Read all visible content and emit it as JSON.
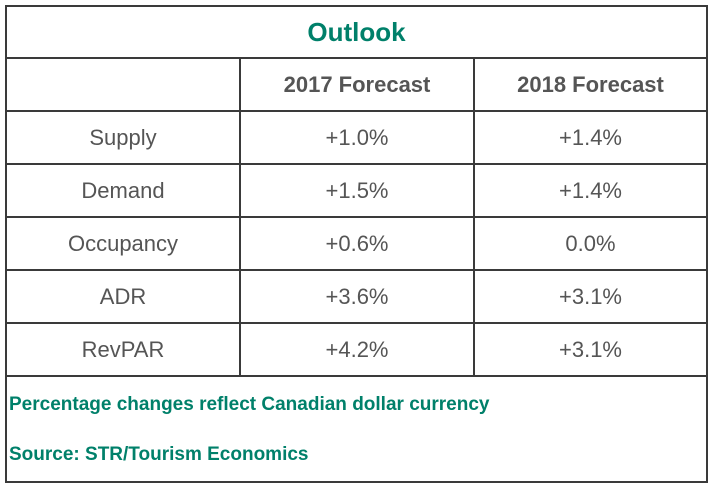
{
  "title": "Outlook",
  "columns": [
    "",
    "2017 Forecast",
    "2018 Forecast"
  ],
  "rows": [
    {
      "label": "Supply",
      "y2017": "+1.0%",
      "y2018": "+1.4%"
    },
    {
      "label": "Demand",
      "y2017": "+1.5%",
      "y2018": "+1.4%"
    },
    {
      "label": "Occupancy",
      "y2017": "+0.6%",
      "y2018": "0.0%"
    },
    {
      "label": "ADR",
      "y2017": "+3.6%",
      "y2018": "+3.1%"
    },
    {
      "label": "RevPAR",
      "y2017": "+4.2%",
      "y2018": "+3.1%"
    }
  ],
  "notes": {
    "currency": "Percentage changes reflect Canadian dollar currency",
    "source": "Source: STR/Tourism Economics"
  },
  "colors": {
    "accent": "#00806a",
    "text": "#555555",
    "border": "#3a3a3a"
  }
}
